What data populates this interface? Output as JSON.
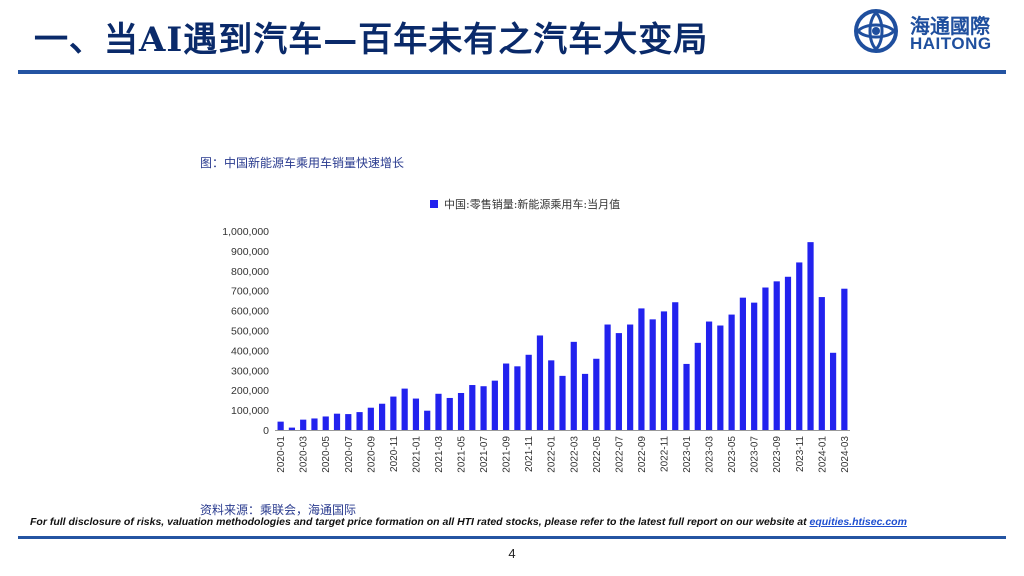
{
  "header": {
    "title": "一、当AI遇到汽车—百年未有之汽车大变局",
    "logo_cn": "海通國際",
    "logo_en": "HAITONG"
  },
  "figure": {
    "caption": "图：中国新能源车乘用车销量快速增长",
    "source": "资料来源：乘联会，海通国际"
  },
  "footer": {
    "disclaimer": "For full disclosure of risks, valuation methodologies and target price formation on all HTI rated stocks, please refer to the  latest full report on our website at ",
    "link_text": "equities.htisec.com",
    "page_number": "4"
  },
  "colors": {
    "brand": "#2454a2",
    "bar": "#2222ee"
  },
  "chart_data": {
    "type": "bar",
    "legend": "中国:零售销量:新能源乘用车:当月值",
    "legend_position": "top-center",
    "categories": [
      "2020-01",
      "2020-02",
      "2020-03",
      "2020-04",
      "2020-05",
      "2020-06",
      "2020-07",
      "2020-08",
      "2020-09",
      "2020-10",
      "2020-11",
      "2020-12",
      "2021-01",
      "2021-02",
      "2021-03",
      "2021-04",
      "2021-05",
      "2021-06",
      "2021-07",
      "2021-08",
      "2021-09",
      "2021-10",
      "2021-11",
      "2021-12",
      "2022-01",
      "2022-02",
      "2022-03",
      "2022-04",
      "2022-05",
      "2022-06",
      "2022-07",
      "2022-08",
      "2022-09",
      "2022-10",
      "2022-11",
      "2022-12",
      "2023-01",
      "2023-02",
      "2023-03",
      "2023-04",
      "2023-05",
      "2023-06",
      "2023-07",
      "2023-08",
      "2023-09",
      "2023-10",
      "2023-11",
      "2023-12",
      "2024-01",
      "2024-02",
      "2024-03"
    ],
    "x_tick_labels": [
      "2020-01",
      "2020-03",
      "2020-05",
      "2020-07",
      "2020-09",
      "2020-11",
      "2021-01",
      "2021-03",
      "2021-05",
      "2021-07",
      "2021-09",
      "2021-11",
      "2022-01",
      "2022-03",
      "2022-05",
      "2022-07",
      "2022-09",
      "2022-11",
      "2023-01",
      "2023-03",
      "2023-05",
      "2023-07",
      "2023-09",
      "2023-11",
      "2024-01",
      "2024-03"
    ],
    "series": [
      {
        "name": "中国:零售销量:新能源乘用车:当月值",
        "values": [
          42000,
          12000,
          52000,
          58000,
          68000,
          82000,
          80000,
          90000,
          112000,
          132000,
          168000,
          208000,
          158000,
          97000,
          182000,
          161000,
          186000,
          226000,
          220000,
          248000,
          334000,
          320000,
          378000,
          475000,
          350000,
          272000,
          443000,
          282000,
          358000,
          530000,
          487000,
          530000,
          611000,
          556000,
          596000,
          642000,
          332000,
          438000,
          545000,
          525000,
          580000,
          665000,
          640000,
          716000,
          747000,
          770000,
          842000,
          944000,
          668000,
          388000,
          710000
        ]
      }
    ],
    "y_tick_labels": [
      "0",
      "100,000",
      "200,000",
      "300,000",
      "400,000",
      "500,000",
      "600,000",
      "700,000",
      "800,000",
      "900,000",
      "1,000,000"
    ],
    "ylim": [
      0,
      1000000
    ],
    "grid": false
  }
}
